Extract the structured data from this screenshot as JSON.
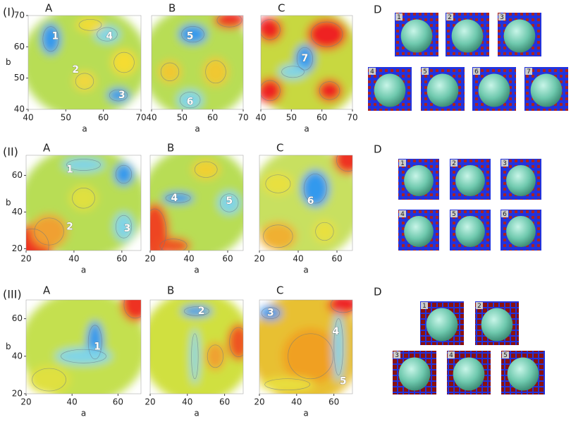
{
  "axis_labels": {
    "x": "a",
    "y": "b"
  },
  "rows": [
    {
      "label": "(I)",
      "xlim": [
        40,
        70
      ],
      "ylim": [
        40,
        70
      ],
      "yticks": [
        70,
        60,
        50,
        40
      ],
      "panels": [
        {
          "letter": "A",
          "xticks": [
            40,
            50,
            60,
            70
          ],
          "markers": [
            "1",
            "2",
            "3",
            "4"
          ]
        },
        {
          "letter": "B",
          "xticks": [
            40,
            50,
            60,
            70
          ],
          "markers": [
            "5",
            "6"
          ]
        },
        {
          "letter": "C",
          "xticks": [
            40,
            50,
            60,
            70
          ],
          "markers": [
            "7"
          ]
        }
      ],
      "d_letter": "D",
      "thumbs": [
        "1",
        "2",
        "3",
        "4",
        "5",
        "6",
        "7"
      ]
    },
    {
      "label": "(II)",
      "xlim": [
        20,
        68
      ],
      "ylim": [
        19,
        71
      ],
      "yticks": [
        60,
        40,
        20
      ],
      "panels": [
        {
          "letter": "A",
          "xticks": [
            20,
            40,
            60
          ],
          "markers": [
            "1",
            "2",
            "3"
          ]
        },
        {
          "letter": "B",
          "xticks": [
            20,
            40,
            60
          ],
          "markers": [
            "4",
            "5"
          ]
        },
        {
          "letter": "C",
          "xticks": [
            20,
            40,
            60
          ],
          "markers": [
            "6"
          ]
        }
      ],
      "d_letter": "D",
      "thumbs": [
        "1",
        "2",
        "3",
        "4",
        "5",
        "6"
      ]
    },
    {
      "label": "(III)",
      "xlim": [
        20,
        70
      ],
      "ylim": [
        20,
        70
      ],
      "yticks": [
        60,
        40,
        20
      ],
      "panels": [
        {
          "letter": "A",
          "xticks": [
            20,
            40,
            60
          ],
          "markers": [
            "1"
          ]
        },
        {
          "letter": "B",
          "xticks": [
            20,
            40,
            60
          ],
          "markers": [
            "2"
          ]
        },
        {
          "letter": "C",
          "xticks": [
            20,
            40,
            60
          ],
          "markers": [
            "3",
            "4",
            "5"
          ]
        }
      ],
      "d_letter": "D",
      "thumbs": [
        "1",
        "2",
        "3",
        "4",
        "5"
      ]
    }
  ]
}
